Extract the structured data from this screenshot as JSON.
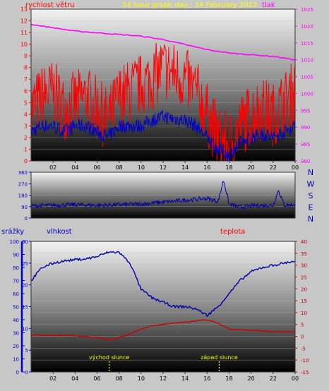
{
  "colors": {
    "background": "#c7c7c7",
    "wind": "#ff0000",
    "wind_avg": "#0000cc",
    "pressure": "#ff00ff",
    "direction": "#0000aa",
    "humidity": "#0000aa",
    "temperature": "#cc0000",
    "precip_axis": "#0000cc",
    "title": "#ffff00",
    "sun_marker": "#ffff00"
  },
  "chart_data": [
    {
      "type": "line",
      "title": "24 hour graph day : 14 February 2022",
      "left_axis_label": "rychlost větru",
      "right_axis_label": "tlak",
      "x_ticks": [
        "02",
        "04",
        "06",
        "08",
        "10",
        "12",
        "14",
        "16",
        "18",
        "20",
        "22",
        "00"
      ],
      "left_ticks": [
        "0",
        "1",
        "2",
        "3",
        "4",
        "5",
        "6",
        "7",
        "8",
        "9",
        "10",
        "11",
        "12",
        "13"
      ],
      "right_ticks": [
        "980",
        "985",
        "990",
        "995",
        "1000",
        "1005",
        "1010",
        "1015",
        "1020",
        "1025"
      ],
      "left_range": [
        0,
        13
      ],
      "right_range": [
        980,
        1025
      ],
      "x_range": [
        0,
        24
      ],
      "series": [
        {
          "role": "wind_gust",
          "x": [
            0,
            1,
            2,
            3,
            4,
            5,
            6,
            7,
            8,
            9,
            10,
            11,
            12,
            13,
            14,
            15,
            16,
            17,
            18,
            19,
            20,
            21,
            22,
            23,
            24
          ],
          "y": [
            4.5,
            5.5,
            6,
            4.5,
            5,
            5.5,
            4.5,
            3.5,
            5.5,
            6,
            6.5,
            7,
            8,
            7.5,
            7,
            6,
            4,
            2,
            1.5,
            3,
            4,
            4.5,
            4,
            5,
            6
          ]
        },
        {
          "role": "wind_avg",
          "x": [
            0,
            1,
            2,
            3,
            4,
            5,
            6,
            7,
            8,
            9,
            10,
            11,
            12,
            13,
            14,
            15,
            16,
            17,
            18,
            19,
            20,
            21,
            22,
            23,
            24
          ],
          "y": [
            2.5,
            3,
            3,
            2.5,
            3,
            3,
            2.5,
            2,
            3,
            3,
            3,
            3.5,
            3.8,
            3.6,
            3.5,
            3,
            2,
            1,
            0.5,
            1.5,
            2,
            2.3,
            2,
            2.5,
            3
          ]
        },
        {
          "role": "pressure",
          "x": [
            0,
            2,
            4,
            6,
            8,
            10,
            12,
            14,
            16,
            18,
            20,
            22,
            24
          ],
          "y": [
            1020.5,
            1019.5,
            1018.5,
            1018,
            1017.5,
            1017,
            1016,
            1014.5,
            1013,
            1012,
            1011.5,
            1011,
            1010
          ]
        }
      ]
    },
    {
      "type": "line",
      "left_axis_label": "",
      "right_axis_labels": [
        "N",
        "W",
        "S",
        "E",
        "N"
      ],
      "left_ticks": [
        "0",
        "90",
        "180",
        "270",
        "360"
      ],
      "left_range": [
        0,
        360
      ],
      "x_range": [
        0,
        24
      ],
      "series": [
        {
          "role": "wind_direction",
          "x": [
            0,
            2,
            4,
            6,
            8,
            10,
            12,
            14,
            16,
            17,
            17.5,
            18,
            19,
            20,
            21,
            22,
            22.5,
            23,
            24
          ],
          "y": [
            95,
            100,
            105,
            100,
            105,
            110,
            125,
            140,
            155,
            130,
            300,
            110,
            85,
            95,
            100,
            100,
            220,
            100,
            105
          ]
        }
      ]
    },
    {
      "type": "line",
      "precip_axis_label": "srážky",
      "left_axis_label": "vlhkost",
      "right_axis_label": "teplota",
      "precip_ticks": [
        "0",
        "10",
        "20",
        "30",
        "40",
        "50",
        "60",
        "70",
        "80",
        "90",
        "100"
      ],
      "humidity_ticks": [
        "0",
        "5",
        "10",
        "15",
        "20",
        "25",
        "30"
      ],
      "temp_ticks": [
        "-15",
        "-10",
        "-5",
        "0",
        "5",
        "10",
        "15",
        "20",
        "25",
        "30",
        "35",
        "40"
      ],
      "humidity_range": [
        0,
        30
      ],
      "temp_range": [
        -15,
        40
      ],
      "x_ticks": [
        "02",
        "04",
        "06",
        "08",
        "10",
        "12",
        "14",
        "16",
        "18",
        "20",
        "22",
        "00"
      ],
      "x_range": [
        0,
        24
      ],
      "sunrise_label": "východ slunce",
      "sunset_label": "západ slunce",
      "sunrise_hour": 7.1,
      "sunset_hour": 17.1,
      "series": [
        {
          "role": "humidity",
          "x": [
            0,
            1,
            2,
            3,
            4,
            5,
            6,
            7,
            8,
            9,
            10,
            11,
            12,
            13,
            14,
            15,
            16,
            17,
            18,
            19,
            20,
            21,
            22,
            23,
            24
          ],
          "y": [
            21,
            24,
            25,
            25.5,
            25.8,
            26,
            26.5,
            27.5,
            27.5,
            25,
            19,
            17,
            16,
            15,
            15,
            14.5,
            13,
            15,
            18,
            21,
            23,
            24,
            24.5,
            25,
            25.5
          ]
        },
        {
          "role": "temperature",
          "x": [
            0,
            2,
            4,
            6,
            7,
            8,
            9,
            10,
            11,
            12,
            13,
            14,
            15,
            16,
            17,
            18,
            20,
            22,
            24
          ],
          "y": [
            0.5,
            0.5,
            0.3,
            -0.5,
            -1.5,
            -0.5,
            1,
            3,
            4.5,
            5,
            5.5,
            6,
            6.5,
            7,
            5.5,
            3,
            2.5,
            2,
            2
          ]
        }
      ]
    }
  ]
}
